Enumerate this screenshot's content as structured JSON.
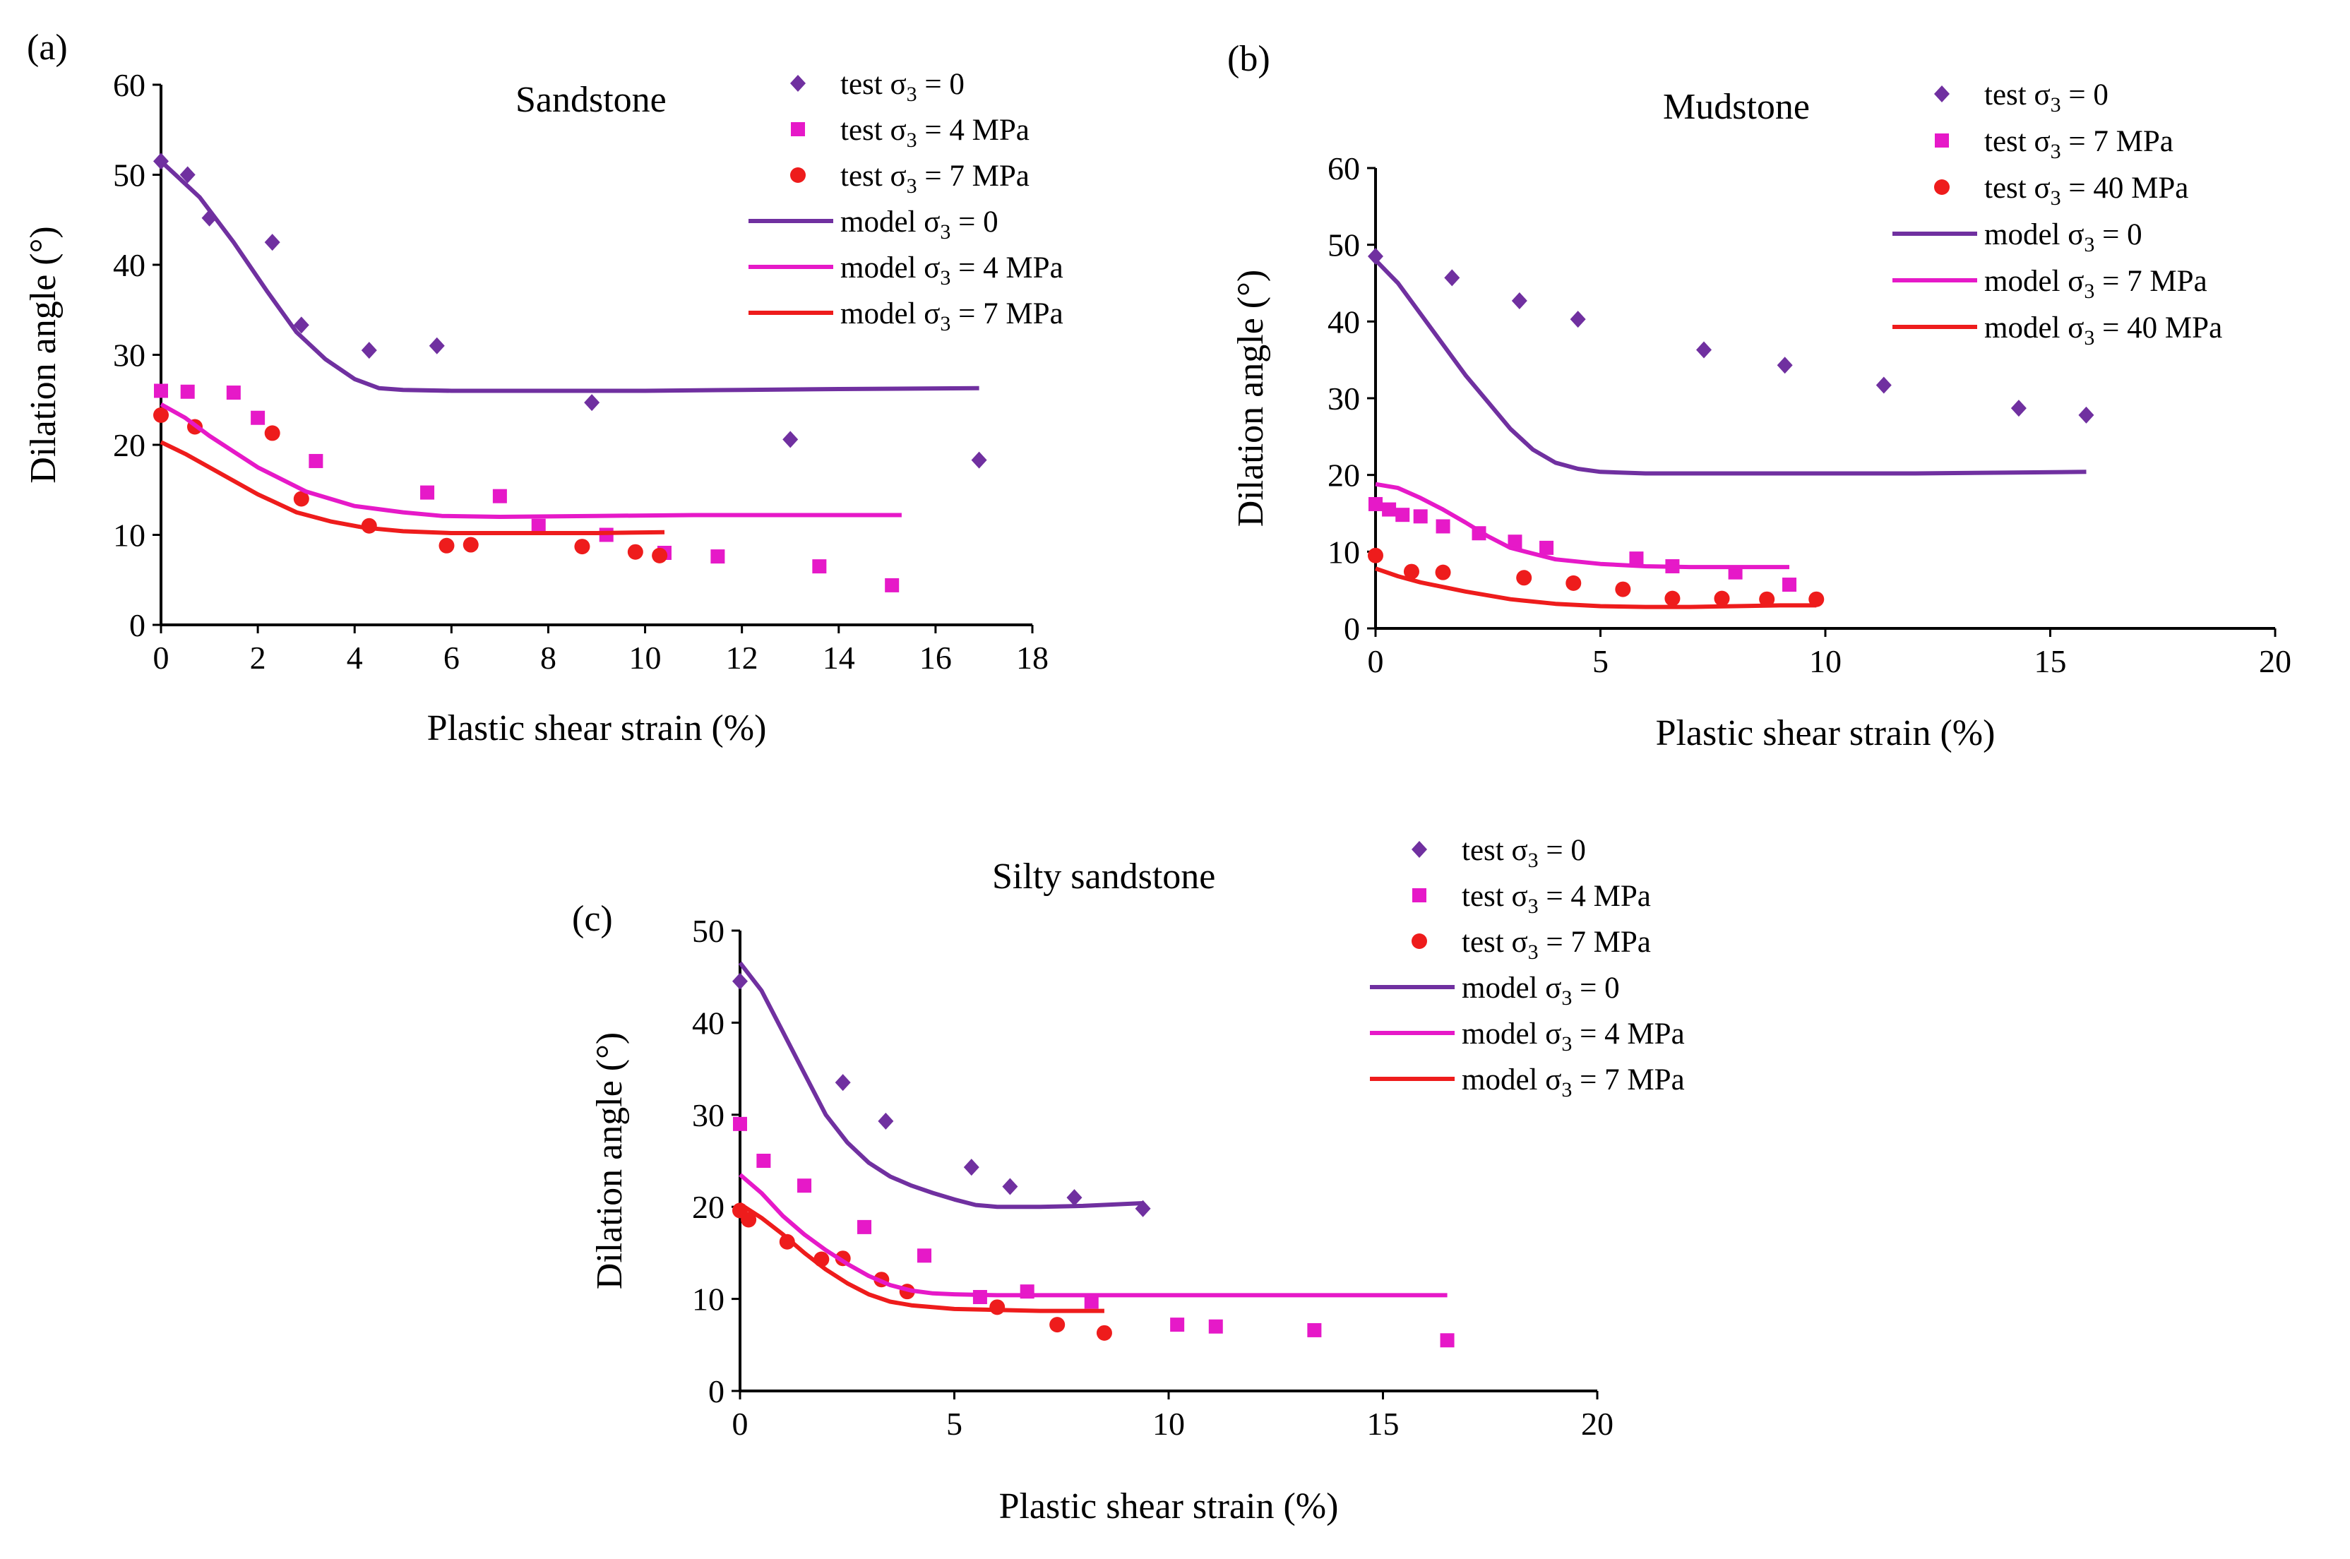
{
  "figure": {
    "panels": [
      {
        "panel_label": "(a)",
        "title": "Sandstone",
        "chart_data": {
          "type": "scatter",
          "xlabel": "Plastic shear strain (%)",
          "ylabel": "Dilation angle (°)",
          "xlim": [
            0,
            18
          ],
          "ylim": [
            0,
            60
          ],
          "xticks": [
            0,
            2,
            4,
            6,
            8,
            10,
            12,
            14,
            16,
            18
          ],
          "yticks": [
            0,
            10,
            20,
            30,
            40,
            50,
            60
          ],
          "series": [
            {
              "name": "test σ3 = 0",
              "kind": "points",
              "marker": "diamond",
              "color": "#7030A0",
              "x": [
                0,
                0.55,
                1.0,
                2.3,
                2.9,
                4.3,
                5.7,
                8.9,
                13.0,
                16.9
              ],
              "y": [
                51.5,
                50.0,
                45.2,
                42.5,
                33.3,
                30.5,
                31.0,
                24.7,
                20.6,
                18.3
              ]
            },
            {
              "name": "test σ3 = 4 MPa",
              "kind": "points",
              "marker": "square",
              "color": "#E619C8",
              "x": [
                0,
                0.55,
                1.5,
                2.0,
                3.2,
                5.5,
                7.0,
                7.8,
                9.2,
                10.4,
                11.5,
                13.6,
                15.1
              ],
              "y": [
                26.0,
                25.9,
                25.8,
                23.0,
                18.2,
                14.7,
                14.3,
                11.0,
                10.0,
                8.0,
                7.6,
                6.5,
                4.4
              ]
            },
            {
              "name": "test σ3 = 7 MPa",
              "kind": "points",
              "marker": "circle",
              "color": "#EE1C1C",
              "x": [
                0,
                0.7,
                2.3,
                2.9,
                4.3,
                5.9,
                6.4,
                8.7,
                9.8,
                10.3
              ],
              "y": [
                23.3,
                22.0,
                21.3,
                14.0,
                11.0,
                8.8,
                8.9,
                8.7,
                8.1,
                7.7
              ]
            },
            {
              "name": "model σ3 = 0",
              "kind": "line",
              "color": "#7030A0",
              "x": [
                0,
                0.8,
                1.5,
                2.2,
                2.8,
                3.4,
                4.0,
                4.5,
                5.0,
                6.0,
                8.0,
                10.0,
                12.0,
                14.0,
                16.9
              ],
              "y": [
                51.5,
                47.5,
                42.5,
                37.0,
                32.5,
                29.5,
                27.3,
                26.3,
                26.1,
                26.0,
                26.0,
                26.0,
                26.1,
                26.2,
                26.3
              ]
            },
            {
              "name": "model σ3 = 4 MPa",
              "kind": "line",
              "color": "#E619C8",
              "x": [
                0,
                0.5,
                1.0,
                2.0,
                3.0,
                4.0,
                5.0,
                5.8,
                7.0,
                9.0,
                11.0,
                13.0,
                15.3
              ],
              "y": [
                24.5,
                23.0,
                21.0,
                17.5,
                14.8,
                13.2,
                12.5,
                12.1,
                12.0,
                12.1,
                12.2,
                12.2,
                12.2
              ]
            },
            {
              "name": "model σ3 = 7 MPa",
              "kind": "line",
              "color": "#EE1C1C",
              "x": [
                0,
                0.5,
                1.0,
                2.0,
                2.8,
                3.5,
                4.2,
                5.0,
                6.0,
                7.0,
                8.0,
                9.0,
                10.4
              ],
              "y": [
                20.3,
                19.0,
                17.5,
                14.5,
                12.5,
                11.5,
                10.8,
                10.4,
                10.2,
                10.2,
                10.2,
                10.2,
                10.3
              ]
            }
          ]
        },
        "legend_labels": [
          "test σ",
          "test σ",
          "test σ",
          "model σ",
          "model σ",
          "model σ"
        ],
        "legend_subs": [
          "3",
          "3",
          "3",
          "3",
          "3",
          "3"
        ],
        "legend_values": [
          " = 0",
          " = 4 MPa",
          " = 7 MPa",
          " = 0",
          " = 4 MPa",
          " = 7 MPa"
        ]
      },
      {
        "panel_label": "(b)",
        "title": "Mudstone",
        "chart_data": {
          "type": "scatter",
          "xlabel": "Plastic shear strain (%)",
          "ylabel": "Dilation angle (°)",
          "xlim": [
            0,
            20
          ],
          "ylim": [
            0,
            60
          ],
          "xticks": [
            0,
            5,
            10,
            15,
            20
          ],
          "yticks": [
            0,
            10,
            20,
            30,
            40,
            50,
            60
          ],
          "series": [
            {
              "name": "test σ3 = 0",
              "kind": "points",
              "marker": "diamond",
              "color": "#7030A0",
              "x": [
                0,
                1.7,
                3.2,
                4.5,
                7.3,
                9.1,
                11.3,
                14.3,
                15.8
              ],
              "y": [
                48.5,
                45.7,
                42.7,
                40.3,
                36.3,
                34.3,
                31.7,
                28.7,
                27.8
              ]
            },
            {
              "name": "test σ3 = 7 MPa",
              "kind": "points",
              "marker": "square",
              "color": "#E619C8",
              "x": [
                0,
                0.3,
                0.6,
                1.0,
                1.5,
                2.3,
                3.1,
                3.8,
                5.8,
                6.6,
                8.0,
                9.2
              ],
              "y": [
                16.2,
                15.5,
                14.8,
                14.6,
                13.3,
                12.4,
                11.3,
                10.5,
                9.1,
                8.1,
                7.3,
                5.7
              ]
            },
            {
              "name": "test σ3 = 40 MPa",
              "kind": "points",
              "marker": "circle",
              "color": "#EE1C1C",
              "x": [
                0,
                0.8,
                1.5,
                3.3,
                4.4,
                5.5,
                6.6,
                7.7,
                8.7,
                9.8
              ],
              "y": [
                9.5,
                7.4,
                7.3,
                6.6,
                5.9,
                5.1,
                3.9,
                3.9,
                3.8,
                3.8
              ]
            },
            {
              "name": "model σ3 = 0",
              "kind": "line",
              "color": "#7030A0",
              "x": [
                0,
                0.5,
                1.0,
                1.5,
                2.0,
                2.5,
                3.0,
                3.5,
                4.0,
                4.5,
                5.0,
                6.0,
                8.0,
                10.0,
                12.0,
                14.0,
                15.8
              ],
              "y": [
                48.0,
                45.0,
                41.0,
                37.0,
                33.0,
                29.5,
                26.0,
                23.3,
                21.6,
                20.8,
                20.4,
                20.2,
                20.2,
                20.2,
                20.2,
                20.3,
                20.4
              ]
            },
            {
              "name": "model σ3 = 7 MPa",
              "kind": "line",
              "color": "#E619C8",
              "x": [
                0,
                0.5,
                1.0,
                1.5,
                2.0,
                2.5,
                3.0,
                4.0,
                5.0,
                6.0,
                7.0,
                8.0,
                9.2
              ],
              "y": [
                18.8,
                18.3,
                17.0,
                15.5,
                13.8,
                12.0,
                10.5,
                9.0,
                8.4,
                8.1,
                8.0,
                8.0,
                8.0
              ]
            },
            {
              "name": "model σ3 = 40 MPa",
              "kind": "line",
              "color": "#EE1C1C",
              "x": [
                0,
                0.5,
                1.0,
                2.0,
                3.0,
                4.0,
                5.0,
                6.0,
                7.0,
                8.0,
                9.0,
                9.8
              ],
              "y": [
                7.8,
                6.8,
                6.0,
                4.8,
                3.8,
                3.2,
                2.9,
                2.8,
                2.8,
                2.9,
                3.0,
                3.0
              ]
            }
          ]
        },
        "legend_labels": [
          "test σ",
          "test σ",
          "test σ",
          "model σ",
          "model σ",
          "model σ"
        ],
        "legend_subs": [
          "3",
          "3",
          "3",
          "3",
          "3",
          "3"
        ],
        "legend_values": [
          " = 0",
          " = 7 MPa",
          " = 40 MPa",
          " = 0",
          " = 7 MPa",
          " = 40 MPa"
        ]
      },
      {
        "panel_label": "(c)",
        "title": "Silty sandstone",
        "chart_data": {
          "type": "scatter",
          "xlabel": "Plastic shear strain (%)",
          "ylabel": "Dilation angle (°)",
          "xlim": [
            0,
            20
          ],
          "ylim": [
            0,
            50
          ],
          "xticks": [
            0,
            5,
            10,
            15,
            20
          ],
          "yticks": [
            0,
            10,
            20,
            30,
            40,
            50
          ],
          "series": [
            {
              "name": "test σ3 = 0",
              "kind": "points",
              "marker": "diamond",
              "color": "#7030A0",
              "x": [
                0,
                2.4,
                3.4,
                5.4,
                6.3,
                7.8,
                9.4
              ],
              "y": [
                44.5,
                33.5,
                29.3,
                24.3,
                22.2,
                21.0,
                19.8
              ]
            },
            {
              "name": "test σ3 = 4 MPa",
              "kind": "points",
              "marker": "square",
              "color": "#E619C8",
              "x": [
                0,
                0.55,
                1.5,
                2.9,
                4.3,
                5.6,
                6.7,
                8.2,
                10.2,
                11.1,
                13.4,
                16.5
              ],
              "y": [
                29.0,
                25.0,
                22.3,
                17.8,
                14.7,
                10.2,
                10.8,
                9.7,
                7.2,
                7.0,
                6.6,
                5.5
              ]
            },
            {
              "name": "test σ3 = 7 MPa",
              "kind": "points",
              "marker": "circle",
              "color": "#EE1C1C",
              "x": [
                0,
                0.2,
                1.1,
                1.9,
                2.4,
                3.3,
                3.9,
                6.0,
                7.4,
                8.5
              ],
              "y": [
                19.6,
                18.6,
                16.2,
                14.3,
                14.4,
                12.1,
                10.8,
                9.1,
                7.2,
                6.3
              ]
            },
            {
              "name": "model σ3 = 0",
              "kind": "line",
              "color": "#7030A0",
              "x": [
                0,
                0.5,
                1.0,
                1.5,
                2.0,
                2.5,
                3.0,
                3.5,
                4.0,
                4.5,
                5.0,
                5.5,
                6.0,
                7.0,
                8.0,
                9.4
              ],
              "y": [
                46.5,
                43.5,
                39.0,
                34.5,
                30.0,
                27.0,
                24.8,
                23.3,
                22.3,
                21.5,
                20.8,
                20.2,
                20.0,
                20.0,
                20.1,
                20.4
              ]
            },
            {
              "name": "model σ3 = 4 MPa",
              "kind": "line",
              "color": "#E619C8",
              "x": [
                0,
                0.5,
                1.0,
                1.5,
                2.0,
                2.5,
                3.0,
                3.5,
                4.0,
                4.5,
                5.0,
                6.0,
                8.0,
                10.0,
                12.0,
                14.0,
                16.5
              ],
              "y": [
                23.5,
                21.5,
                19.0,
                17.0,
                15.3,
                13.8,
                12.5,
                11.5,
                10.9,
                10.6,
                10.5,
                10.4,
                10.4,
                10.4,
                10.4,
                10.4,
                10.4
              ]
            },
            {
              "name": "model σ3 = 7 MPa",
              "kind": "line",
              "color": "#EE1C1C",
              "x": [
                0,
                0.5,
                1.0,
                1.5,
                2.0,
                2.5,
                3.0,
                3.5,
                4.0,
                5.0,
                6.0,
                7.0,
                8.5
              ],
              "y": [
                20.3,
                18.8,
                17.0,
                15.0,
                13.2,
                11.7,
                10.5,
                9.7,
                9.3,
                8.9,
                8.8,
                8.7,
                8.7
              ]
            }
          ]
        },
        "legend_labels": [
          "test σ",
          "test σ",
          "test σ",
          "model σ",
          "model σ",
          "model σ"
        ],
        "legend_subs": [
          "3",
          "3",
          "3",
          "3",
          "3",
          "3"
        ],
        "legend_values": [
          " = 0",
          " = 4 MPa",
          " = 7 MPa",
          " = 0",
          " = 4 MPa",
          " = 7 MPa"
        ]
      }
    ]
  }
}
